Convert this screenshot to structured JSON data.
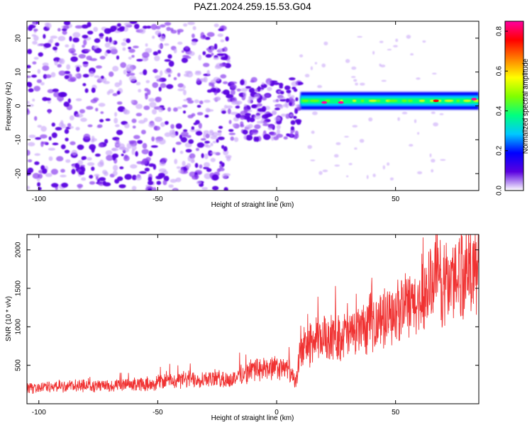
{
  "figure": {
    "title": "PAZ1.2024.259.15.53.G04"
  },
  "chart_data": [
    {
      "type": "heatmap",
      "title": "PAZ1.2024.259.15.53.G04",
      "xlabel": "Height of straight line (km)",
      "ylabel": "Frequency (Hz)",
      "xlim": [
        -105,
        85
      ],
      "ylim": [
        -25,
        25
      ],
      "xticks": [
        -100,
        -50,
        0,
        50
      ],
      "yticks": [
        -20,
        -10,
        0,
        10,
        20
      ],
      "description_regions": [
        {
          "x_range": [
            -105,
            -20
          ],
          "y_range": [
            -25,
            25
          ],
          "level": "noise",
          "amplitude": [
            0.05,
            0.3
          ]
        },
        {
          "x_range": [
            -20,
            10
          ],
          "y_range": [
            -10,
            8
          ],
          "level": "dense noise",
          "amplitude": [
            0.1,
            0.3
          ]
        },
        {
          "x_range": [
            10,
            85
          ],
          "y_range": [
            0,
            3
          ],
          "level": "carrier line",
          "amplitude": [
            0.3,
            0.85
          ]
        }
      ],
      "carrier_frequency_hz": 1.5,
      "peaks": [
        {
          "x": 20,
          "y": 1,
          "amplitude": 0.85
        },
        {
          "x": 27,
          "y": 1,
          "amplitude": 0.85
        },
        {
          "x": 67,
          "y": 1.5,
          "amplitude": 0.8
        },
        {
          "x": 83,
          "y": 2,
          "amplitude": 0.85
        }
      ],
      "colorbar": {
        "label": "Normalized spectral amplitude",
        "range": [
          0.0,
          0.85
        ],
        "ticks": [
          "0.0",
          "0.2",
          "0.4",
          "0.6",
          "0.8"
        ],
        "colors": [
          "#ffffff",
          "#5a00e0",
          "#0000ff",
          "#00c8ff",
          "#00ff80",
          "#80ff00",
          "#ffff00",
          "#ff8000",
          "#ff0000",
          "#ff00a0"
        ]
      }
    },
    {
      "type": "line",
      "xlabel": "Height of straight line (km)",
      "ylabel": "SNR (10 * v/v)",
      "xlim": [
        -105,
        85
      ],
      "ylim": [
        0,
        2200
      ],
      "xticks": [
        -100,
        -50,
        0,
        50
      ],
      "yticks": [
        500,
        1000,
        1500,
        2000
      ],
      "color": "#f03232",
      "series": [
        {
          "x": [
            -105,
            -95,
            -85,
            -75,
            -65,
            -55,
            -45,
            -35,
            -25,
            -20,
            -15,
            -10,
            -5,
            0,
            5,
            8,
            10,
            15,
            20,
            25,
            30,
            35,
            40,
            45,
            50,
            55,
            60,
            65,
            70,
            75,
            80,
            85
          ],
          "values": [
            200,
            220,
            230,
            230,
            240,
            260,
            300,
            320,
            330,
            300,
            380,
            430,
            450,
            460,
            450,
            250,
            700,
            800,
            850,
            880,
            900,
            950,
            1050,
            1100,
            1200,
            1250,
            1300,
            1600,
            1550,
            1650,
            1800,
            1650
          ]
        }
      ]
    }
  ]
}
